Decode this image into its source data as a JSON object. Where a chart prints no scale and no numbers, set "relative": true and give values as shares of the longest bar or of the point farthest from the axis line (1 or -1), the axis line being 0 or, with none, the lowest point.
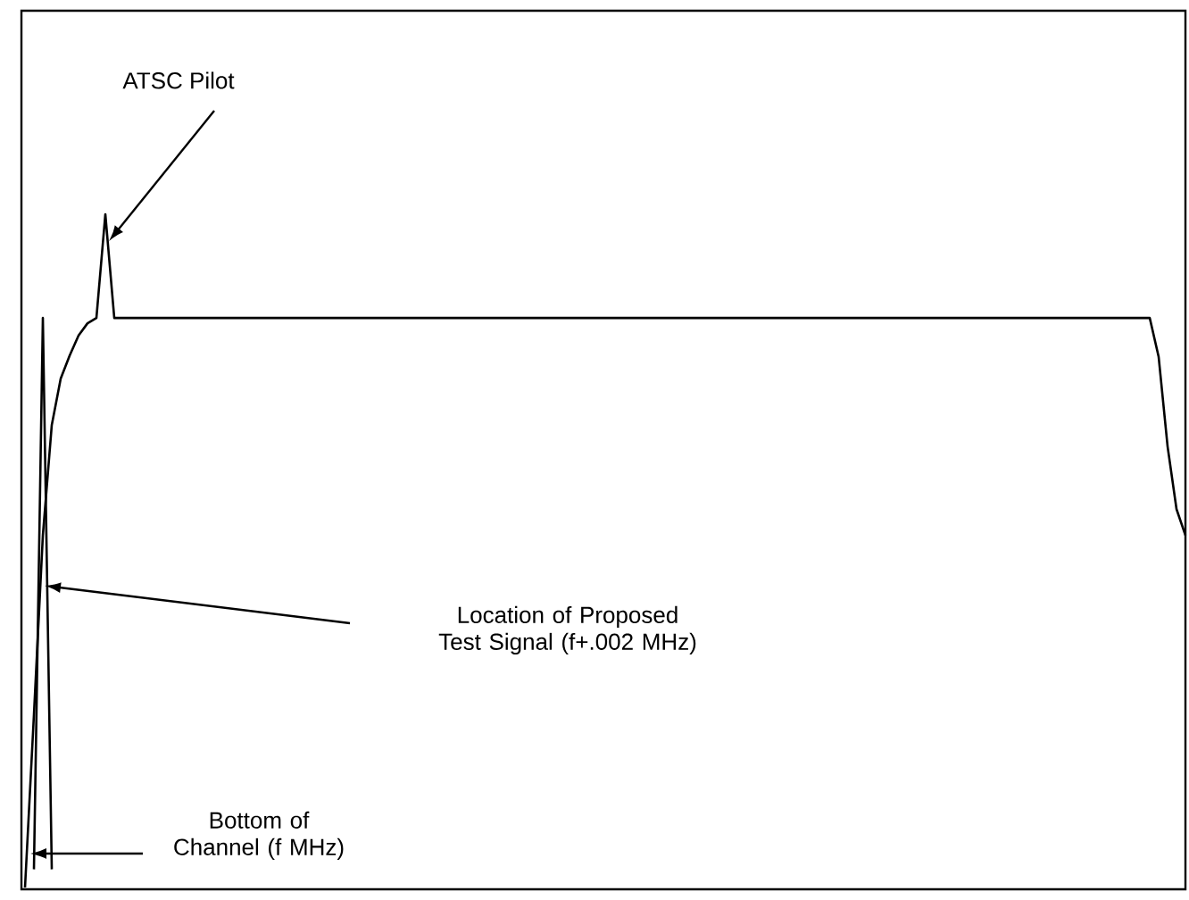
{
  "chart_data": {
    "type": "line",
    "relative": true,
    "categories": [
      null,
      null,
      null,
      null,
      null,
      null,
      null,
      null,
      null,
      null,
      null,
      null,
      null,
      null,
      null,
      null,
      null,
      null,
      null,
      null,
      null,
      null,
      null,
      null,
      null,
      null,
      null,
      null,
      null,
      null,
      null,
      null,
      null,
      null,
      null,
      null,
      null,
      null,
      null,
      null,
      null,
      null,
      null,
      null,
      null,
      null,
      null,
      null,
      null,
      null,
      null,
      null,
      null,
      null,
      null,
      null,
      null,
      null,
      null,
      null,
      null,
      null,
      null,
      null,
      null,
      null,
      null,
      null,
      null,
      null,
      null,
      null,
      null,
      null,
      null,
      null,
      null,
      null,
      null,
      null,
      null,
      null,
      null,
      null,
      null,
      null,
      null,
      null,
      null,
      null,
      null,
      null,
      null,
      null,
      null,
      null,
      null,
      null,
      null,
      null,
      null,
      null,
      null,
      null,
      null,
      null,
      null,
      null,
      null,
      null,
      null,
      null,
      null,
      null,
      null,
      null,
      null,
      null,
      null,
      null,
      null,
      null,
      null,
      null,
      null,
      null,
      null,
      null,
      null,
      null,
      null
    ],
    "series": [
      {
        "color": "#000000",
        "values": [
          0,
          0.257,
          0.523,
          0.687,
          0.756,
          0.79,
          0.82,
          0.838,
          0.846,
          1,
          0.846,
          0.846,
          0.846,
          0.846,
          0.846,
          0.846,
          0.846,
          0.846,
          0.846,
          0.846,
          0.846,
          0.846,
          0.846,
          0.846,
          0.846,
          0.846,
          0.846,
          0.846,
          0.846,
          0.846,
          0.846,
          0.846,
          0.846,
          0.846,
          0.846,
          0.846,
          0.846,
          0.846,
          0.846,
          0.846,
          0.846,
          0.846,
          0.846,
          0.846,
          0.846,
          0.846,
          0.846,
          0.846,
          0.846,
          0.846,
          0.846,
          0.846,
          0.846,
          0.846,
          0.846,
          0.846,
          0.846,
          0.846,
          0.846,
          0.846,
          0.846,
          0.846,
          0.846,
          0.846,
          0.846,
          0.846,
          0.846,
          0.846,
          0.846,
          0.846,
          0.846,
          0.846,
          0.846,
          0.846,
          0.846,
          0.846,
          0.846,
          0.846,
          0.846,
          0.846,
          0.846,
          0.846,
          0.846,
          0.846,
          0.846,
          0.846,
          0.846,
          0.846,
          0.846,
          0.846,
          0.846,
          0.846,
          0.846,
          0.846,
          0.846,
          0.846,
          0.846,
          0.846,
          0.846,
          0.846,
          0.846,
          0.846,
          0.846,
          0.846,
          0.846,
          0.846,
          0.846,
          0.846,
          0.846,
          0.846,
          0.846,
          0.846,
          0.846,
          0.846,
          0.846,
          0.846,
          0.846,
          0.846,
          0.846,
          0.846,
          0.846,
          0.846,
          0.846,
          0.846,
          0.846,
          0.846,
          0.846,
          0.788,
          0.655,
          0.562,
          0.523
        ]
      },
      {
        "color": "#000000",
        "values": [
          null,
          0.027,
          0.846,
          0.027,
          null,
          null,
          null,
          null,
          null,
          null,
          null,
          null,
          null,
          null,
          null,
          null,
          null,
          null,
          null,
          null,
          null,
          null,
          null,
          null,
          null,
          null,
          null,
          null,
          null,
          null,
          null,
          null,
          null,
          null,
          null,
          null,
          null,
          null,
          null,
          null,
          null,
          null,
          null,
          null,
          null,
          null,
          null,
          null,
          null,
          null,
          null,
          null,
          null,
          null,
          null,
          null,
          null,
          null,
          null,
          null,
          null,
          null,
          null,
          null,
          null,
          null,
          null,
          null,
          null,
          null,
          null,
          null,
          null,
          null,
          null,
          null,
          null,
          null,
          null,
          null,
          null,
          null,
          null,
          null,
          null,
          null,
          null,
          null,
          null,
          null,
          null,
          null,
          null,
          null,
          null,
          null,
          null,
          null,
          null,
          null,
          null,
          null,
          null,
          null,
          null,
          null,
          null,
          null,
          null,
          null,
          null,
          null,
          null,
          null,
          null,
          null,
          null,
          null,
          null,
          null,
          null,
          null,
          null,
          null,
          null,
          null,
          null,
          null,
          null,
          null,
          null
        ]
      }
    ],
    "annotations": [
      "ATSC Pilot",
      "Location of Proposed Test Signal (f+.002 MHz)",
      "Bottom of Channel (f MHz)"
    ]
  }
}
